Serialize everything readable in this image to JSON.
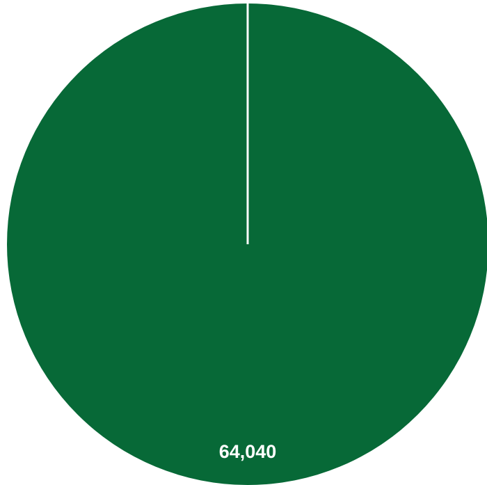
{
  "chart_data": {
    "type": "pie",
    "slices": [
      {
        "value": 64040,
        "label": "64,040",
        "color": "#076937"
      }
    ],
    "separator_color": "#ffffff",
    "background": "#ffffff"
  }
}
